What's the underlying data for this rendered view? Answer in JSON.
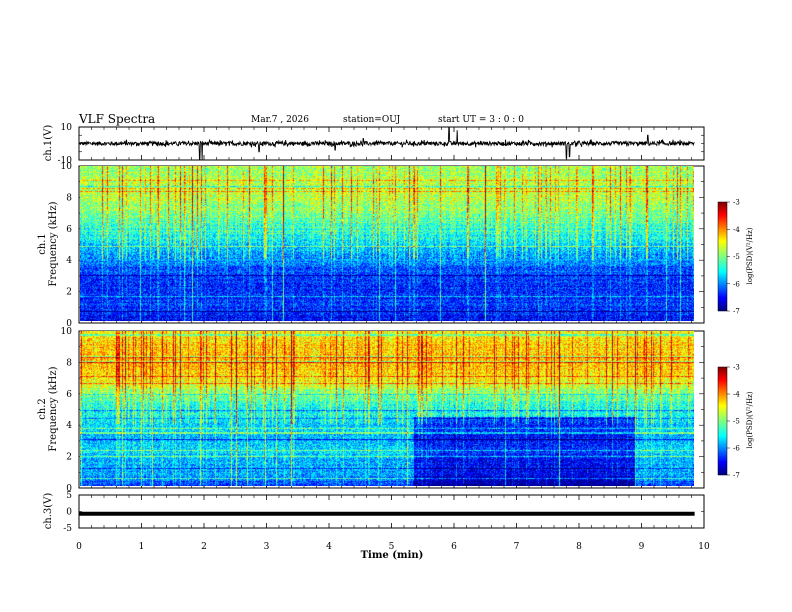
{
  "header": {
    "title": "VLF Spectra",
    "date": "Mar.7 , 2026",
    "station": "station=OUJ",
    "start": "start UT =  3 : 0  : 0"
  },
  "chart_data": [
    {
      "type": "line",
      "name": "ch1-waveform",
      "ylabel": "ch.1(V)",
      "ylim": [
        -10,
        10
      ],
      "yticks": [
        "10",
        "-10"
      ],
      "xlim": [
        0,
        10
      ],
      "baseline": 0,
      "noise_amplitude": 1.2,
      "spikes": [
        {
          "t": 1.93,
          "v": -10
        },
        {
          "t": 1.97,
          "v": -10
        },
        {
          "t": 2.88,
          "v": -5
        },
        {
          "t": 4.1,
          "v": -4
        },
        {
          "t": 4.55,
          "v": 3
        },
        {
          "t": 5.92,
          "v": 10
        },
        {
          "t": 6.05,
          "v": 8
        },
        {
          "t": 7.8,
          "v": -9
        },
        {
          "t": 7.85,
          "v": -8
        },
        {
          "t": 9.1,
          "v": 5
        }
      ]
    },
    {
      "type": "heatmap",
      "name": "ch1-spectrogram",
      "ylabel_line1": "ch.1",
      "ylabel_line2": "Frequency (kHz)",
      "yticks": [
        "0",
        "2",
        "4",
        "6",
        "8",
        "10"
      ],
      "ylim": [
        0,
        10
      ],
      "xlim": [
        0,
        9.85
      ],
      "zlim": [
        -7,
        -3
      ],
      "colorbar_label": "log(PSD)(V²/Hz)",
      "colorbar_ticks": [
        "-3",
        "-4",
        "-5",
        "-6",
        "-7"
      ],
      "profile_kHz": [
        0,
        0.5,
        1,
        2,
        3,
        4,
        5,
        6,
        7,
        8,
        9,
        10
      ],
      "profile_log_psd": [
        -6.6,
        -6.4,
        -6.3,
        -6.4,
        -6.3,
        -5.9,
        -5.6,
        -5.3,
        -5.0,
        -4.8,
        -4.8,
        -4.9
      ]
    },
    {
      "type": "heatmap",
      "name": "ch2-spectrogram",
      "ylabel_line1": "ch.2",
      "ylabel_line2": "Frequency (kHz)",
      "yticks": [
        "0",
        "2",
        "4",
        "6",
        "8",
        "10"
      ],
      "ylim": [
        0,
        10
      ],
      "xlim": [
        0,
        9.85
      ],
      "zlim": [
        -7,
        -3
      ],
      "colorbar_label": "log(PSD)(V²/Hz)",
      "colorbar_ticks": [
        "-3",
        "-4",
        "-5",
        "-6",
        "-7"
      ],
      "profile_kHz": [
        0,
        0.5,
        1,
        2,
        3,
        4,
        5,
        6,
        7,
        8,
        9,
        10
      ],
      "profile_log_psd": [
        -6.4,
        -6.0,
        -5.9,
        -5.7,
        -5.8,
        -5.6,
        -5.4,
        -5.0,
        -4.4,
        -4.2,
        -4.3,
        -4.5
      ],
      "quiet_interval_min": [
        5.35,
        8.9
      ],
      "quiet_interval_below_kHz": 4.5
    },
    {
      "type": "line",
      "name": "ch3-level",
      "ylabel": "ch.3(V)",
      "ylim": [
        -5,
        5
      ],
      "yticks": [
        "5",
        "0",
        "-5"
      ],
      "xlim": [
        0,
        9.85
      ],
      "value": -0.7
    }
  ],
  "xaxis": {
    "label": "Time (min)",
    "ticks": [
      "0",
      "1",
      "2",
      "3",
      "4",
      "5",
      "6",
      "7",
      "8",
      "9",
      "10"
    ],
    "range": [
      0,
      10
    ]
  }
}
